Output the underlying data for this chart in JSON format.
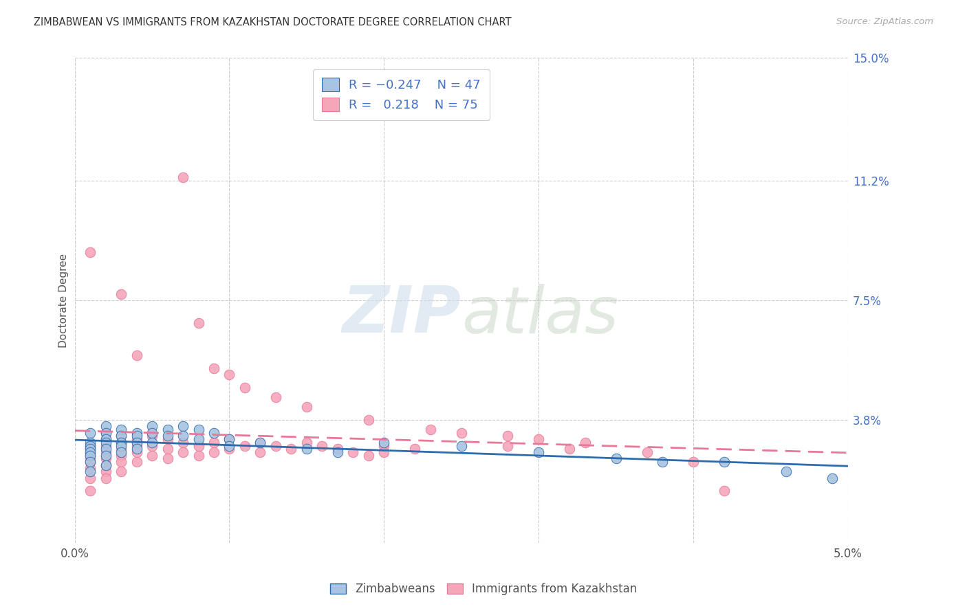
{
  "title": "ZIMBABWEAN VS IMMIGRANTS FROM KAZAKHSTAN DOCTORATE DEGREE CORRELATION CHART",
  "source": "Source: ZipAtlas.com",
  "ylabel": "Doctorate Degree",
  "xlim": [
    0.0,
    0.05
  ],
  "ylim": [
    0.0,
    0.15
  ],
  "yticks": [
    0.0,
    0.038,
    0.075,
    0.112,
    0.15
  ],
  "ytick_labels": [
    "",
    "3.8%",
    "7.5%",
    "11.2%",
    "15.0%"
  ],
  "color_blue": "#a8c4e0",
  "color_pink": "#f4a7b9",
  "line_color_blue": "#2e6bad",
  "line_color_pink": "#e8789a",
  "watermark_zip": "ZIP",
  "watermark_atlas": "atlas",
  "blue_R": -0.247,
  "blue_N": 47,
  "pink_R": 0.218,
  "pink_N": 75,
  "blue_scatter_x": [
    0.001,
    0.001,
    0.001,
    0.001,
    0.001,
    0.001,
    0.001,
    0.001,
    0.002,
    0.002,
    0.002,
    0.002,
    0.002,
    0.002,
    0.002,
    0.003,
    0.003,
    0.003,
    0.003,
    0.003,
    0.004,
    0.004,
    0.004,
    0.004,
    0.005,
    0.005,
    0.005,
    0.006,
    0.006,
    0.007,
    0.007,
    0.008,
    0.008,
    0.009,
    0.01,
    0.01,
    0.012,
    0.015,
    0.017,
    0.02,
    0.025,
    0.03,
    0.035,
    0.038,
    0.042,
    0.046,
    0.049
  ],
  "blue_scatter_y": [
    0.034,
    0.031,
    0.03,
    0.029,
    0.028,
    0.027,
    0.025,
    0.022,
    0.036,
    0.034,
    0.032,
    0.031,
    0.029,
    0.027,
    0.024,
    0.035,
    0.033,
    0.031,
    0.03,
    0.028,
    0.034,
    0.033,
    0.031,
    0.029,
    0.036,
    0.034,
    0.031,
    0.035,
    0.033,
    0.036,
    0.033,
    0.035,
    0.032,
    0.034,
    0.032,
    0.03,
    0.031,
    0.029,
    0.028,
    0.031,
    0.03,
    0.028,
    0.026,
    0.025,
    0.025,
    0.022,
    0.02
  ],
  "pink_scatter_x": [
    0.001,
    0.001,
    0.001,
    0.001,
    0.001,
    0.001,
    0.001,
    0.001,
    0.001,
    0.002,
    0.002,
    0.002,
    0.002,
    0.002,
    0.002,
    0.002,
    0.002,
    0.003,
    0.003,
    0.003,
    0.003,
    0.003,
    0.003,
    0.004,
    0.004,
    0.004,
    0.004,
    0.005,
    0.005,
    0.005,
    0.006,
    0.006,
    0.006,
    0.007,
    0.007,
    0.008,
    0.008,
    0.009,
    0.009,
    0.01,
    0.01,
    0.011,
    0.012,
    0.012,
    0.013,
    0.014,
    0.015,
    0.016,
    0.017,
    0.018,
    0.019,
    0.02,
    0.02,
    0.022,
    0.025,
    0.028,
    0.03,
    0.032,
    0.001,
    0.003,
    0.004,
    0.007,
    0.008,
    0.009,
    0.01,
    0.011,
    0.013,
    0.015,
    0.019,
    0.023,
    0.028,
    0.033,
    0.037,
    0.04,
    0.042
  ],
  "pink_scatter_y": [
    0.03,
    0.029,
    0.028,
    0.027,
    0.026,
    0.025,
    0.023,
    0.02,
    0.016,
    0.034,
    0.032,
    0.03,
    0.028,
    0.026,
    0.024,
    0.022,
    0.02,
    0.033,
    0.031,
    0.029,
    0.027,
    0.025,
    0.022,
    0.032,
    0.03,
    0.028,
    0.025,
    0.033,
    0.03,
    0.027,
    0.032,
    0.029,
    0.026,
    0.031,
    0.028,
    0.03,
    0.027,
    0.031,
    0.028,
    0.032,
    0.029,
    0.03,
    0.031,
    0.028,
    0.03,
    0.029,
    0.031,
    0.03,
    0.029,
    0.028,
    0.027,
    0.03,
    0.028,
    0.029,
    0.034,
    0.03,
    0.032,
    0.029,
    0.09,
    0.077,
    0.058,
    0.113,
    0.068,
    0.054,
    0.052,
    0.048,
    0.045,
    0.042,
    0.038,
    0.035,
    0.033,
    0.031,
    0.028,
    0.025,
    0.016
  ]
}
